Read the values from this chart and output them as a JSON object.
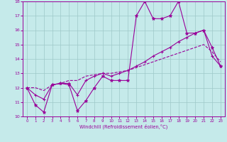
{
  "title": "",
  "xlabel": "Windchill (Refroidissement éolien,°C)",
  "bg_color": "#c5eaea",
  "grid_color": "#9ec8c8",
  "line_color": "#990099",
  "xlim": [
    -0.5,
    23.5
  ],
  "ylim": [
    10,
    18
  ],
  "yticks": [
    10,
    11,
    12,
    13,
    14,
    15,
    16,
    17,
    18
  ],
  "xticks": [
    0,
    1,
    2,
    3,
    4,
    5,
    6,
    7,
    8,
    9,
    10,
    11,
    12,
    13,
    14,
    15,
    16,
    17,
    18,
    19,
    20,
    21,
    22,
    23
  ],
  "line1_x": [
    0,
    1,
    2,
    3,
    4,
    5,
    6,
    7,
    8,
    9,
    10,
    11,
    12,
    13,
    14,
    15,
    16,
    17,
    18,
    19,
    20,
    21,
    22,
    23
  ],
  "line1_y": [
    12.0,
    10.8,
    10.3,
    12.2,
    12.3,
    12.2,
    10.4,
    11.1,
    12.0,
    12.8,
    12.5,
    12.5,
    12.5,
    17.0,
    18.0,
    16.8,
    16.8,
    17.0,
    18.0,
    15.8,
    15.8,
    16.0,
    14.8,
    13.5
  ],
  "line2_x": [
    0,
    1,
    2,
    3,
    4,
    5,
    6,
    7,
    8,
    9,
    10,
    11,
    12,
    13,
    14,
    15,
    16,
    17,
    18,
    19,
    20,
    21,
    22,
    23
  ],
  "line2_y": [
    12.0,
    11.5,
    11.2,
    12.2,
    12.3,
    12.3,
    11.5,
    12.5,
    12.8,
    13.0,
    12.8,
    13.0,
    13.2,
    13.5,
    13.8,
    14.2,
    14.5,
    14.8,
    15.2,
    15.5,
    15.8,
    16.0,
    14.2,
    13.5
  ],
  "line3_x": [
    0,
    1,
    2,
    3,
    4,
    5,
    6,
    7,
    8,
    9,
    10,
    11,
    12,
    13,
    14,
    15,
    16,
    17,
    18,
    19,
    20,
    21,
    22,
    23
  ],
  "line3_y": [
    12.0,
    12.0,
    11.8,
    12.2,
    12.3,
    12.5,
    12.5,
    12.8,
    12.9,
    13.0,
    13.0,
    13.1,
    13.2,
    13.4,
    13.6,
    13.8,
    14.0,
    14.2,
    14.4,
    14.6,
    14.8,
    15.0,
    14.5,
    13.8
  ]
}
